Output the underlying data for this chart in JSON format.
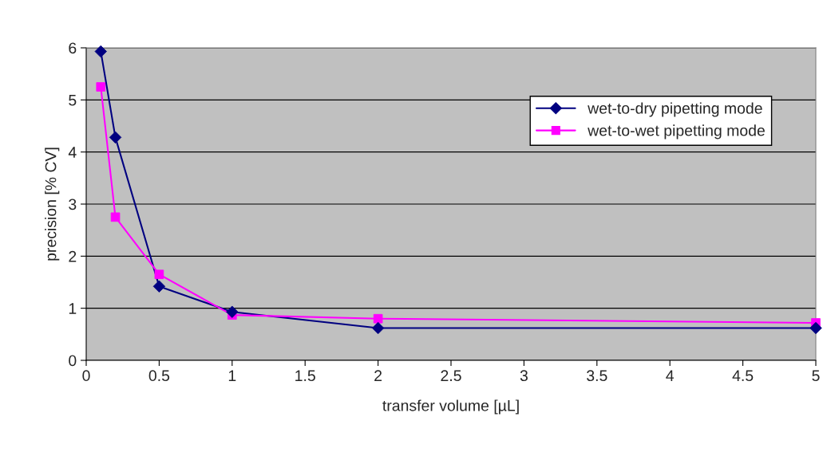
{
  "chart_data": {
    "type": "line",
    "xlabel": "transfer volume [µL]",
    "ylabel": "precision [% CV]",
    "x": [
      0.1,
      0.2,
      0.5,
      1,
      2,
      5
    ],
    "series": [
      {
        "name": "wet-to-dry pipetting mode",
        "color": "#000080",
        "marker": "diamond",
        "values": [
          5.93,
          4.28,
          1.42,
          0.93,
          0.62,
          0.62
        ]
      },
      {
        "name": "wet-to-wet pipetting mode",
        "color": "#ff00ff",
        "marker": "square",
        "values": [
          5.25,
          2.75,
          1.65,
          0.87,
          0.8,
          0.72
        ]
      }
    ],
    "xlim": [
      0,
      5
    ],
    "xticks": [
      0,
      0.5,
      1,
      1.5,
      2,
      2.5,
      3,
      3.5,
      4,
      4.5,
      5
    ],
    "ylim": [
      0,
      6
    ],
    "yticks": [
      0,
      1,
      2,
      3,
      4,
      5,
      6
    ],
    "grid": "y",
    "legend": "top right"
  }
}
